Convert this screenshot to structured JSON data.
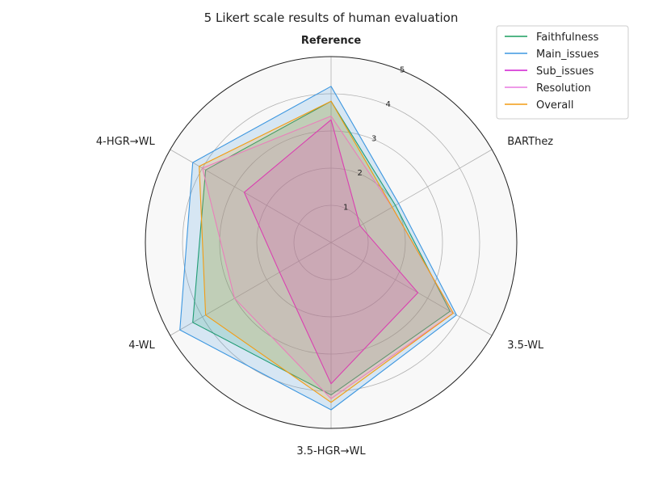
{
  "chart_data": {
    "type": "radar",
    "title": "5 Likert scale results of human evaluation",
    "axes": [
      "Reference",
      "BARThez",
      "3.5-WL",
      "3.5-HGR→WL",
      "4-WL",
      "4-HGR→WL"
    ],
    "rlim": [
      0,
      5
    ],
    "rticks": [
      "1",
      "2",
      "3",
      "4",
      "5"
    ],
    "legend_position": "top-right",
    "series": [
      {
        "name": "Faithfulness",
        "color": "#1a9e5f",
        "values": [
          3.8,
          2.0,
          3.7,
          4.1,
          4.3,
          3.9
        ]
      },
      {
        "name": "Main_issues",
        "color": "#3d97e0",
        "values": [
          4.2,
          2.1,
          3.9,
          4.5,
          4.7,
          4.3
        ]
      },
      {
        "name": "Sub_issues",
        "color": "#d11cd1",
        "values": [
          3.3,
          0.9,
          2.7,
          3.8,
          1.6,
          2.7
        ]
      },
      {
        "name": "Resolution",
        "color": "#e879e0",
        "values": [
          3.4,
          1.9,
          3.8,
          4.2,
          3.0,
          4.0
        ]
      },
      {
        "name": "Overall",
        "color": "#f39c12",
        "values": [
          3.8,
          1.9,
          3.8,
          4.3,
          3.9,
          4.1
        ]
      }
    ]
  }
}
